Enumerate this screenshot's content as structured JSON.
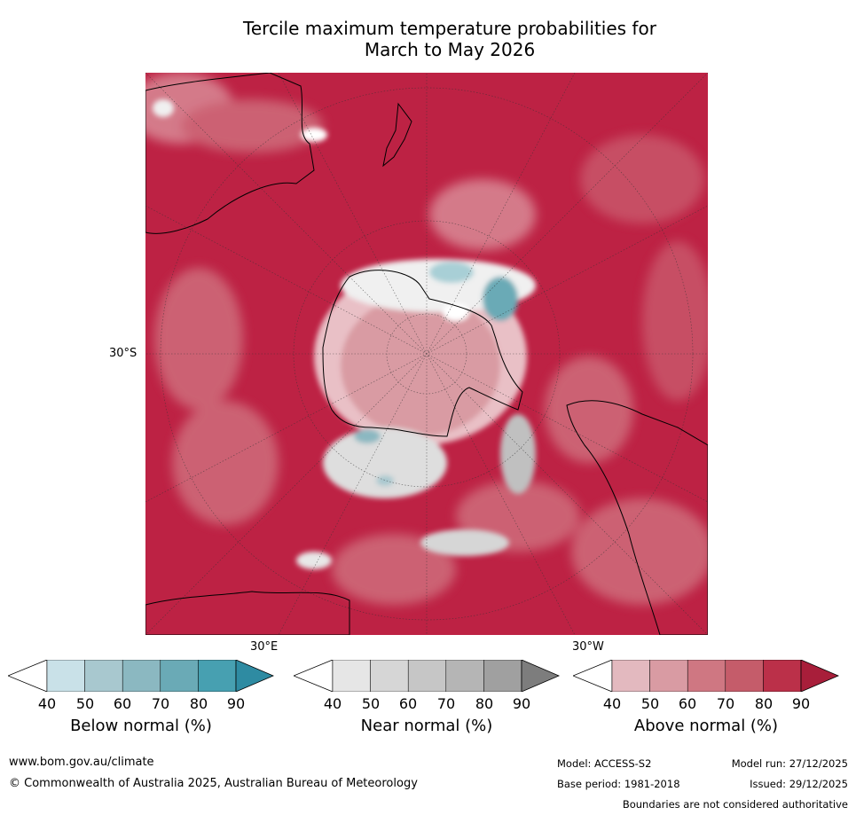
{
  "title": {
    "line1": "Tercile maximum temperature probabilities for",
    "line2": "March to May 2026"
  },
  "map": {
    "lat_label": "30°S",
    "lon_label_east": "30°E",
    "lon_label_west": "30°W"
  },
  "legends": [
    {
      "label": "Below normal (%)",
      "ticks": [
        "40",
        "50",
        "60",
        "70",
        "80",
        "90"
      ],
      "colors": [
        "#ffffff",
        "#c9e1e8",
        "#a8c8cf",
        "#8bb8c1",
        "#6aaab6",
        "#47a0b1",
        "#2e8ba2"
      ]
    },
    {
      "label": "Near normal (%)",
      "ticks": [
        "40",
        "50",
        "60",
        "70",
        "80",
        "90"
      ],
      "colors": [
        "#ffffff",
        "#e6e6e6",
        "#d6d6d6",
        "#c6c6c6",
        "#b5b5b5",
        "#a0a0a0",
        "#7d7d7d"
      ]
    },
    {
      "label": "Above normal (%)",
      "ticks": [
        "40",
        "50",
        "60",
        "70",
        "80",
        "90"
      ],
      "colors": [
        "#ffffff",
        "#e3b9bf",
        "#d99ba3",
        "#cf7782",
        "#c55c6a",
        "#bb3049",
        "#a81e3a"
      ]
    }
  ],
  "footer": {
    "website": "www.bom.gov.au/climate",
    "copyright": "© Commonwealth of Australia 2025, Australian Bureau of Meteorology",
    "model": "Model: ACCESS-S2",
    "model_run": "Model run: 27/12/2025",
    "base_period": "Base period: 1981-2018",
    "issued": "Issued: 29/12/2025",
    "disclaimer": "Boundaries are not considered authoritative"
  }
}
